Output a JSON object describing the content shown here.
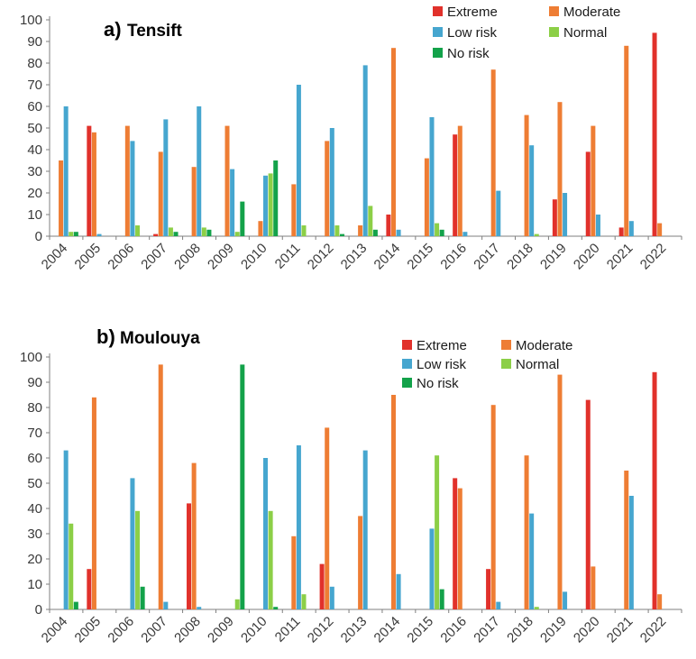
{
  "colors": {
    "Extreme": "#e1312b",
    "Moderate": "#ee7d34",
    "Low risk": "#46a6cf",
    "Normal": "#8ccf47",
    "No risk": "#13a24a"
  },
  "chart_data": [
    {
      "type": "bar",
      "panel_label": "a)",
      "title": "Tensift",
      "categories": [
        "2004",
        "2005",
        "2006",
        "2007",
        "2008",
        "2009",
        "2010",
        "2011",
        "2012",
        "2013",
        "2014",
        "2015",
        "2016",
        "2017",
        "2018",
        "2019",
        "2020",
        "2021",
        "2022"
      ],
      "ylim": [
        0,
        100
      ],
      "yticks": [
        0,
        10,
        20,
        30,
        40,
        50,
        60,
        70,
        80,
        90,
        100
      ],
      "grid": false,
      "legend_position": "top-right",
      "series": [
        {
          "name": "Extreme",
          "values": [
            0,
            51,
            0,
            1,
            0,
            0,
            0,
            0,
            0,
            0,
            10,
            0,
            47,
            0,
            0,
            17,
            39,
            4,
            94
          ]
        },
        {
          "name": "Moderate",
          "values": [
            35,
            48,
            51,
            39,
            32,
            51,
            7,
            24,
            44,
            5,
            87,
            36,
            51,
            77,
            56,
            62,
            51,
            88,
            6
          ]
        },
        {
          "name": "Low risk",
          "values": [
            60,
            1,
            44,
            54,
            60,
            31,
            28,
            70,
            50,
            79,
            3,
            55,
            2,
            21,
            42,
            20,
            10,
            7,
            0
          ]
        },
        {
          "name": "Normal",
          "values": [
            2,
            0,
            5,
            4,
            4,
            2,
            29,
            5,
            5,
            14,
            0,
            6,
            0,
            0,
            1,
            0,
            0,
            0,
            0
          ]
        },
        {
          "name": "No risk",
          "values": [
            2,
            0,
            0,
            2,
            3,
            16,
            35,
            0,
            1,
            3,
            0,
            3,
            0,
            0,
            0,
            0,
            0,
            0,
            0
          ]
        }
      ]
    },
    {
      "type": "bar",
      "panel_label": "b)",
      "title": "Moulouya",
      "categories": [
        "2004",
        "2005",
        "2006",
        "2007",
        "2008",
        "2009",
        "2010",
        "2011",
        "2012",
        "2013",
        "2014",
        "2015",
        "2016",
        "2017",
        "2018",
        "2019",
        "2020",
        "2021",
        "2022"
      ],
      "ylim": [
        0,
        100
      ],
      "yticks": [
        0,
        10,
        20,
        30,
        40,
        50,
        60,
        70,
        80,
        90,
        100
      ],
      "grid": false,
      "legend_position": "top-right",
      "series": [
        {
          "name": "Extreme",
          "values": [
            0,
            16,
            0,
            0,
            42,
            0,
            0,
            0,
            18,
            0,
            0,
            0,
            52,
            16,
            0,
            0,
            83,
            0,
            94
          ]
        },
        {
          "name": "Moderate",
          "values": [
            0,
            84,
            0,
            97,
            58,
            0,
            0,
            29,
            72,
            37,
            85,
            0,
            48,
            81,
            61,
            93,
            17,
            55,
            6
          ]
        },
        {
          "name": "Low risk",
          "values": [
            63,
            0,
            52,
            3,
            1,
            0,
            60,
            65,
            9,
            63,
            14,
            32,
            0,
            3,
            38,
            7,
            0,
            45,
            0
          ]
        },
        {
          "name": "Normal",
          "values": [
            34,
            0,
            39,
            0,
            0,
            4,
            39,
            6,
            0,
            0,
            0,
            61,
            0,
            0,
            1,
            0,
            0,
            0,
            0
          ]
        },
        {
          "name": "No risk",
          "values": [
            3,
            0,
            9,
            0,
            0,
            97,
            1,
            0,
            0,
            0,
            0,
            8,
            0,
            0,
            0,
            0,
            0,
            0,
            0
          ]
        }
      ]
    }
  ]
}
